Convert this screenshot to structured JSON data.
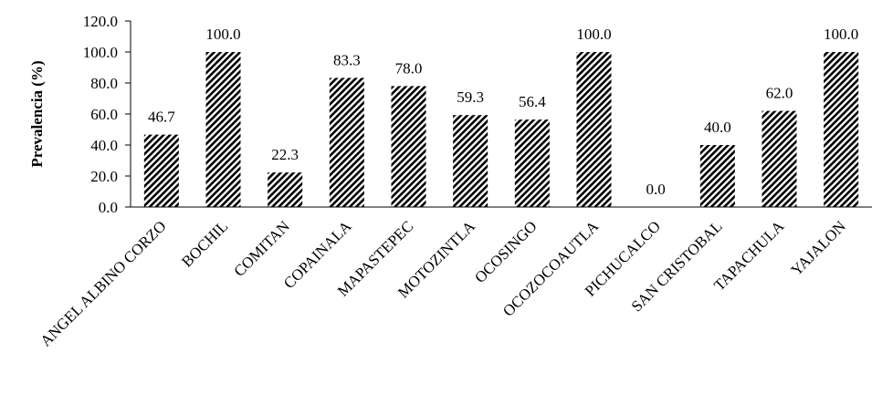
{
  "chart_data": {
    "type": "bar",
    "y_label": "Prevalencia (%)",
    "categories": [
      "ANGEL ALBINO CORZO",
      "BOCHIL",
      "COMITAN",
      "COPAINALA",
      "MAPASTEPEC",
      "MOTOZINTLA",
      "OCOSINGO",
      "OCOZOCOAUTLA",
      "PICHUCALCO",
      "SAN CRISTOBAL",
      "TAPACHULA",
      "YAJALON"
    ],
    "values": [
      46.7,
      100,
      22.3,
      83.3,
      78,
      59.3,
      56.4,
      100,
      0,
      40,
      62,
      100
    ],
    "value_labels": [
      "46.7",
      "100.0",
      "22.3",
      "83.3",
      "78.0",
      "59.3",
      "56.4",
      "100.0",
      "0.0",
      "40.0",
      "62.0",
      "100.0"
    ],
    "color": "#000000",
    "ylim": [
      0,
      120
    ],
    "yticks": [
      {
        "value": 0,
        "label": "0.0"
      },
      {
        "value": 20,
        "label": "20.0"
      },
      {
        "value": 40,
        "label": "40.0"
      },
      {
        "value": 60,
        "label": "60.0"
      },
      {
        "value": 80,
        "label": "80.0"
      },
      {
        "value": 100,
        "label": "100.0"
      },
      {
        "value": 120,
        "label": "120.0"
      }
    ],
    "grid": false
  }
}
